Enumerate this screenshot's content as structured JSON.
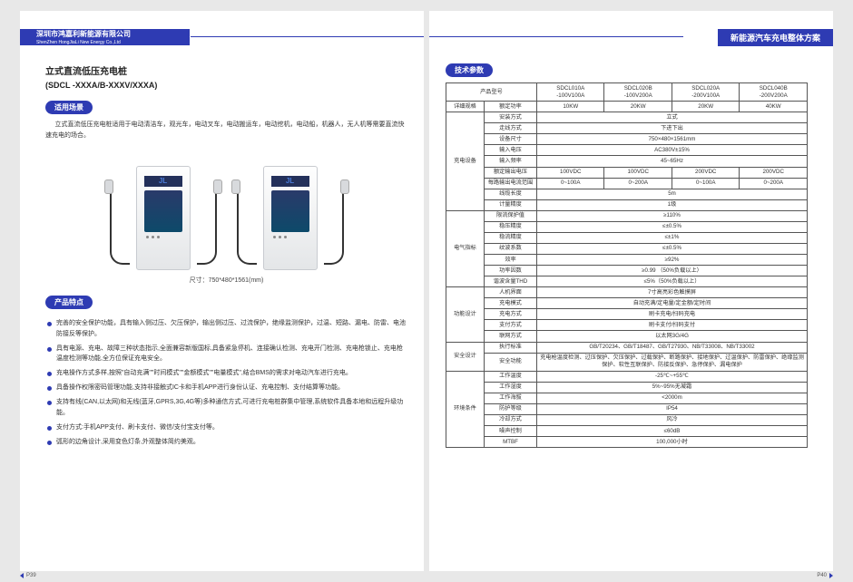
{
  "header": {
    "company_zh": "深圳市鸿嘉利新能源有限公司",
    "company_en": "ShenZhen HongJiaLi New Energy Co.,Ltd",
    "right_title": "新能源汽车充电整体方案"
  },
  "left": {
    "title": "立式直流低压充电桩",
    "model": "(SDCL -XXXA/B-XXXV/XXXA)",
    "scene_pill": "适用场景",
    "scene_text": "立式直流低压充电桩适用于电动清洁车，观光车，电动叉车，电动搬运车，电动挖机，电动船，机器人，无人机等需要直流快速充电的场合。",
    "dim": "尺寸：750*480*1561(mm)",
    "feat_pill": "产品特点",
    "features": [
      "完善的安全保护功能，具有输入侧过压、欠压保护，输出侧过压、过流保护，绝缘监测保护，过温、短路、漏电、防雷、电池防接反等保护。",
      "具有电源、充电、故障三种状态指示,全面兼容新版国标,具备紧急停机、连接确认检测、充电开门检测、充电枪锁止、充电枪温度检测等功能,全方位保证充电安全。",
      "充电操作方式多样,按照\"自动充满\"\"时间模式\"\"金额模式\"\"电量模式\",结合BMS的需求对电动汽车进行充电。",
      "具备操作权限密码管理功能,支持非接触式IC卡和手机APP进行身份认证、充电控制、支付结算等功能。",
      "支持有线(CAN,以太网)和无线(蓝牙,GPRS,3G,4G等)多种通信方式,可进行充电桩群集中管理,系统软件具备本地和远程升级功能。",
      "支付方式:手机APP支付、刷卡支付、微信/支付宝支付等。",
      "弧形的边角设计,采用变色灯条,外观整体简约美观。"
    ]
  },
  "right": {
    "tech_pill": "技术参数",
    "models": {
      "head": "产品型号",
      "cols": [
        {
          "m": "SDCL010A",
          "v": "-100V100A"
        },
        {
          "m": "SDCL020B",
          "v": "-100V200A"
        },
        {
          "m": "SDCL020A",
          "v": "-200V100A"
        },
        {
          "m": "SDCL040B",
          "v": "-200V200A"
        }
      ]
    },
    "rated": {
      "cat": "详细规格",
      "param": "额定功率",
      "vals": [
        "10KW",
        "20KW",
        "20KW",
        "40KW"
      ]
    },
    "groups": [
      {
        "cat": "充电设备",
        "rows": [
          {
            "p": "安装方式",
            "v": "立式"
          },
          {
            "p": "走线方式",
            "v": "下进下出"
          },
          {
            "p": "设备尺寸",
            "v": "750×480×1561mm"
          },
          {
            "p": "输入电压",
            "v": "AC380V±15%"
          },
          {
            "p": "输入频率",
            "v": "45~65Hz"
          },
          {
            "p": "额定输出电压",
            "vals": [
              "100VDC",
              "100VDC",
              "200VDC",
              "200VDC"
            ]
          },
          {
            "p": "每路输出电流范围",
            "vals": [
              "0~100A",
              "0~200A",
              "0~100A",
              "0~200A"
            ]
          },
          {
            "p": "线缆长度",
            "v": "5m"
          },
          {
            "p": "计量精度",
            "v": "1级"
          }
        ]
      },
      {
        "cat": "电气指标",
        "rows": [
          {
            "p": "限流保护值",
            "v": "≥110%"
          },
          {
            "p": "稳压精度",
            "v": "≤±0.5%"
          },
          {
            "p": "稳流精度",
            "v": "≤±1%"
          },
          {
            "p": "纹波系数",
            "v": "≤±0.5%"
          },
          {
            "p": "效率",
            "v": "≥92%"
          },
          {
            "p": "功率因数",
            "v": "≥0.99 （50%负载以上）"
          },
          {
            "p": "谐波含量THD",
            "v": "≤5%（50%负载以上）"
          }
        ]
      },
      {
        "cat": "功能设计",
        "rows": [
          {
            "p": "人机界面",
            "v": "7寸高亮彩色触摸屏"
          },
          {
            "p": "充电模式",
            "v": "自动充满/定电量/定金额/定时间"
          },
          {
            "p": "充电方式",
            "v": "刷卡充电/扫码充电"
          },
          {
            "p": "支付方式",
            "v": "刷卡支付/扫码支付"
          },
          {
            "p": "联网方式",
            "v": "以太网3G/4G"
          }
        ]
      },
      {
        "cat": "安全设计",
        "rows": [
          {
            "p": "执行标准",
            "v": "GB/T20234、GB/T18487、GB/T27930、NB/T33008、NB/T33002"
          },
          {
            "p": "安全功能",
            "v": "充电枪温度检测、过压保护、欠压保护、过载保护、断路保护、接地保护、过温保护、防雷保护、绝缘监测保护、软性互联保护、防接反保护、急停保护、漏电保护"
          }
        ]
      },
      {
        "cat": "环境条件",
        "rows": [
          {
            "p": "工作温度",
            "v": "-25℃~+55℃"
          },
          {
            "p": "工作湿度",
            "v": "5%~95%无凝霜"
          },
          {
            "p": "工作海拔",
            "v": "<2000m"
          },
          {
            "p": "防护等级",
            "v": "IP54"
          },
          {
            "p": "冷却方式",
            "v": "风冷"
          },
          {
            "p": "噪声控制",
            "v": "≤60dB"
          },
          {
            "p": "MTBF",
            "v": "100,000小时"
          }
        ]
      }
    ]
  },
  "pnum": {
    "left": "P39",
    "right": "P40"
  }
}
